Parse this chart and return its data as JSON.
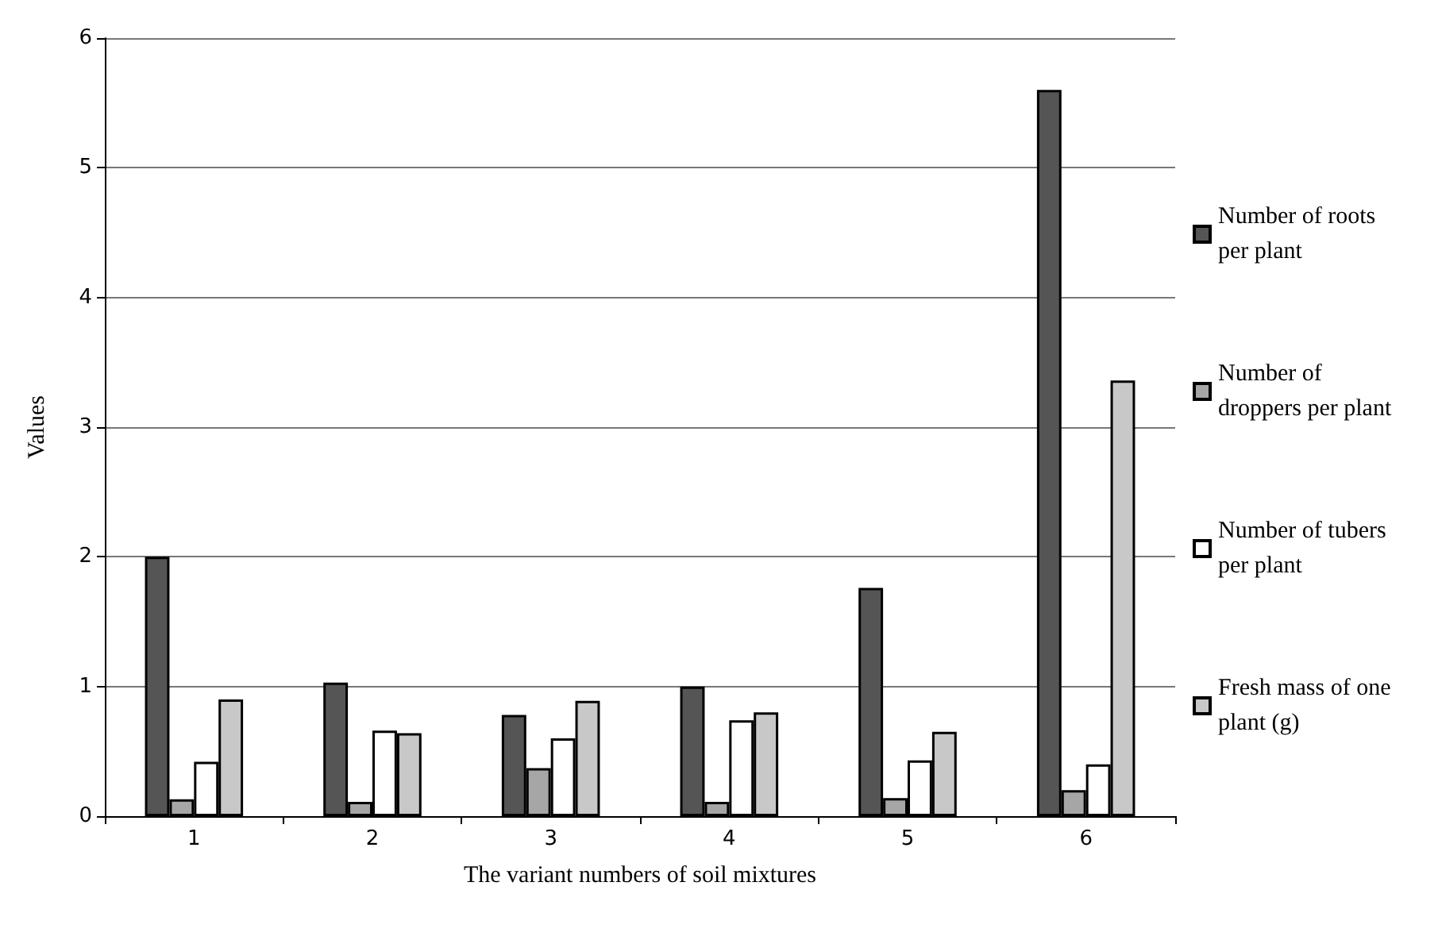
{
  "chart_data": {
    "type": "bar",
    "xlabel": "The variant numbers of soil mixtures",
    "ylabel": "Values",
    "categories": [
      "1",
      "2",
      "3",
      "4",
      "5",
      "6"
    ],
    "series": [
      {
        "name": "Number of roots per plant",
        "color": "#555555",
        "values": [
          2.0,
          1.03,
          0.78,
          1.0,
          1.76,
          5.6
        ]
      },
      {
        "name": "Number of droppers per plant",
        "color": "#a6a6a6",
        "values": [
          0.13,
          0.11,
          0.37,
          0.11,
          0.14,
          0.2
        ]
      },
      {
        "name": "Number of tubers per plant",
        "color": "#ffffff",
        "values": [
          0.42,
          0.66,
          0.6,
          0.74,
          0.43,
          0.4
        ]
      },
      {
        "name": "Fresh mass of one plant (g)",
        "color": "#c8c8c8",
        "values": [
          0.9,
          0.64,
          0.89,
          0.8,
          0.65,
          3.36
        ]
      }
    ],
    "ylim": [
      0,
      6
    ],
    "yticks": [
      0,
      1,
      2,
      3,
      4,
      5,
      6
    ],
    "grid": "y",
    "legend": "right"
  }
}
